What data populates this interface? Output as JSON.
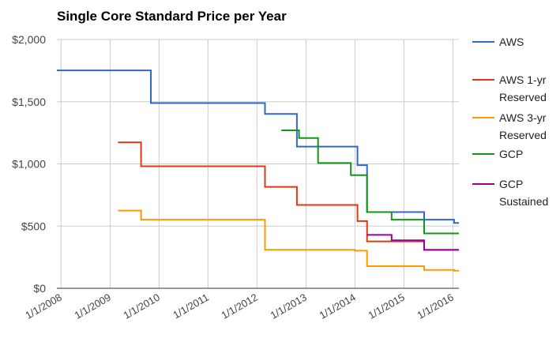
{
  "chart_data": {
    "type": "line",
    "step": true,
    "title": "Single Core Standard Price per Year",
    "xlabel": "",
    "ylabel": "",
    "ylim": [
      0,
      2000
    ],
    "y_ticks": [
      {
        "value": 0,
        "label": "$0"
      },
      {
        "value": 500,
        "label": "$500"
      },
      {
        "value": 1000,
        "label": "$1,000"
      },
      {
        "value": 1500,
        "label": "$1,500"
      },
      {
        "value": 2000,
        "label": "$2,000"
      }
    ],
    "xlim": [
      "2007-12-01",
      "2016-02-15"
    ],
    "x_ticks": [
      {
        "value": "2008-01-01",
        "label": "1/1/2008"
      },
      {
        "value": "2009-01-01",
        "label": "1/1/2009"
      },
      {
        "value": "2010-01-01",
        "label": "1/1/2010"
      },
      {
        "value": "2011-01-01",
        "label": "1/1/2011"
      },
      {
        "value": "2012-01-01",
        "label": "1/1/2012"
      },
      {
        "value": "2013-01-01",
        "label": "1/1/2013"
      },
      {
        "value": "2014-01-01",
        "label": "1/1/2014"
      },
      {
        "value": "2015-01-01",
        "label": "1/1/2015"
      },
      {
        "value": "2016-01-01",
        "label": "1/1/2016"
      }
    ],
    "grid": true,
    "legend_position": "right",
    "series": [
      {
        "name": "AWS",
        "color": "#3366cc",
        "points": [
          [
            "2007-12-01",
            1752
          ],
          [
            "2009-11-01",
            1752
          ],
          [
            "2009-11-01",
            1489
          ],
          [
            "2012-03-01",
            1489
          ],
          [
            "2012-03-01",
            1401
          ],
          [
            "2012-10-25",
            1401
          ],
          [
            "2012-10-25",
            1139
          ],
          [
            "2014-01-20",
            1139
          ],
          [
            "2014-01-20",
            990
          ],
          [
            "2014-04-01",
            990
          ],
          [
            "2014-04-01",
            613
          ],
          [
            "2015-06-01",
            613
          ],
          [
            "2015-06-01",
            552
          ],
          [
            "2016-01-10",
            552
          ],
          [
            "2016-01-10",
            525
          ],
          [
            "2016-02-15",
            525
          ]
        ]
      },
      {
        "name": "AWS 1-yr Reserved",
        "color": "#dc3912",
        "points": [
          [
            "2009-03-01",
            1173
          ],
          [
            "2009-08-20",
            1173
          ],
          [
            "2009-08-20",
            981
          ],
          [
            "2012-03-01",
            981
          ],
          [
            "2012-03-01",
            815
          ],
          [
            "2012-10-25",
            815
          ],
          [
            "2012-10-25",
            670
          ],
          [
            "2014-01-20",
            670
          ],
          [
            "2014-01-20",
            540
          ],
          [
            "2014-04-01",
            540
          ],
          [
            "2014-04-01",
            377
          ],
          [
            "2015-06-01",
            377
          ],
          [
            "2015-06-01",
            308
          ],
          [
            "2016-02-15",
            308
          ]
        ]
      },
      {
        "name": "AWS 3-yr Reserved",
        "color": "#ff9900",
        "points": [
          [
            "2009-03-01",
            625
          ],
          [
            "2009-08-20",
            625
          ],
          [
            "2009-08-20",
            552
          ],
          [
            "2012-03-01",
            552
          ],
          [
            "2012-03-01",
            310
          ],
          [
            "2014-01-01",
            310
          ],
          [
            "2014-01-01",
            302
          ],
          [
            "2014-04-01",
            302
          ],
          [
            "2014-04-01",
            178
          ],
          [
            "2015-06-01",
            178
          ],
          [
            "2015-06-01",
            148
          ],
          [
            "2016-01-10",
            148
          ],
          [
            "2016-01-10",
            141
          ],
          [
            "2016-02-15",
            141
          ]
        ]
      },
      {
        "name": "GCP",
        "color": "#109618",
        "points": [
          [
            "2012-07-01",
            1270
          ],
          [
            "2012-11-10",
            1270
          ],
          [
            "2012-11-10",
            1208
          ],
          [
            "2013-04-01",
            1208
          ],
          [
            "2013-04-01",
            1007
          ],
          [
            "2013-12-01",
            1007
          ],
          [
            "2013-12-01",
            910
          ],
          [
            "2014-04-01",
            910
          ],
          [
            "2014-04-01",
            613
          ],
          [
            "2014-10-01",
            613
          ],
          [
            "2014-10-01",
            552
          ],
          [
            "2015-06-01",
            552
          ],
          [
            "2015-06-01",
            441
          ],
          [
            "2016-02-15",
            441
          ]
        ]
      },
      {
        "name": "GCP Sustained",
        "color": "#990099",
        "points": [
          [
            "2014-04-01",
            429
          ],
          [
            "2014-10-01",
            429
          ],
          [
            "2014-10-01",
            386
          ],
          [
            "2015-06-01",
            386
          ],
          [
            "2015-06-01",
            309
          ],
          [
            "2016-02-15",
            309
          ]
        ]
      }
    ]
  },
  "legend": [
    {
      "lines": [
        "AWS"
      ],
      "color": "#3366cc"
    },
    {
      "lines": [
        "AWS 1-yr",
        "Reserved"
      ],
      "color": "#dc3912"
    },
    {
      "lines": [
        "AWS 3-yr",
        "Reserved"
      ],
      "color": "#ff9900"
    },
    {
      "lines": [
        "GCP"
      ],
      "color": "#109618"
    },
    {
      "lines": [
        "GCP",
        "Sustained"
      ],
      "color": "#990099"
    }
  ]
}
